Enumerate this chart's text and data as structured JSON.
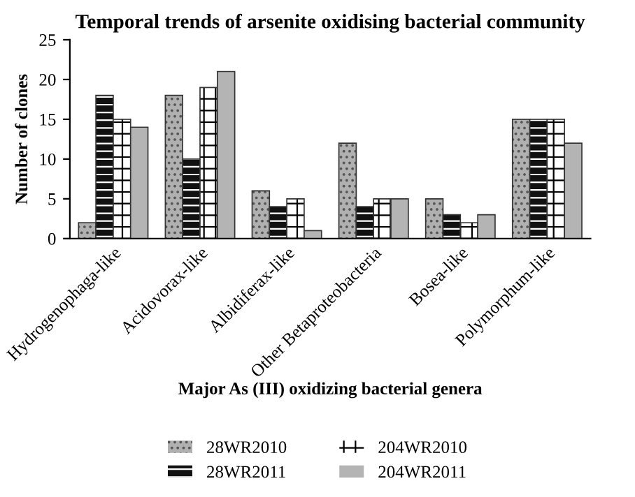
{
  "chart_data": {
    "type": "bar",
    "title": "Temporal trends of arsenite oxidising bacterial community",
    "xlabel": "Major As (III) oxidizing bacterial genera",
    "ylabel": "Number of clones",
    "categories": [
      "Hydrogenophaga-like",
      "Acidovorax-like",
      "Albidiferax-like",
      "Other Betaproteobacteria",
      "Bosea-like",
      "Polymorphum-like"
    ],
    "series": [
      {
        "name": "28WR2010",
        "color": "#b0b0b0",
        "values": [
          2,
          18,
          6,
          12,
          5,
          15
        ]
      },
      {
        "name": "28WR2011",
        "color": "#111111",
        "values": [
          18,
          10,
          4,
          4,
          3,
          15
        ]
      },
      {
        "name": "204WR2010",
        "color": "#ffffff",
        "values": [
          15,
          19,
          5,
          5,
          2,
          15
        ]
      },
      {
        "name": "204WR2011",
        "color": "#b4b4b4",
        "values": [
          14,
          21,
          1,
          5,
          3,
          12
        ]
      }
    ],
    "ylim": [
      0,
      25
    ],
    "yticks": [
      0,
      5,
      10,
      15,
      20,
      25
    ],
    "grid": false,
    "legend": "bottom"
  }
}
